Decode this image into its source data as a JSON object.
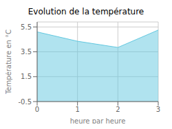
{
  "chart_data": {
    "type": "area",
    "title": "Evolution de la température",
    "xlabel": "heure par heure",
    "ylabel": "Température en °C",
    "x": [
      0,
      1,
      2,
      3
    ],
    "values": [
      5.1,
      4.35,
      3.85,
      5.25
    ],
    "color": "#62c8e0",
    "xlim": [
      0,
      3
    ],
    "xticks": [
      0,
      1,
      2,
      3
    ],
    "ylim": [
      -0.5,
      5.9
    ],
    "yticks": [
      -0.5,
      1.5,
      3.5,
      5.5
    ],
    "grid": true
  }
}
